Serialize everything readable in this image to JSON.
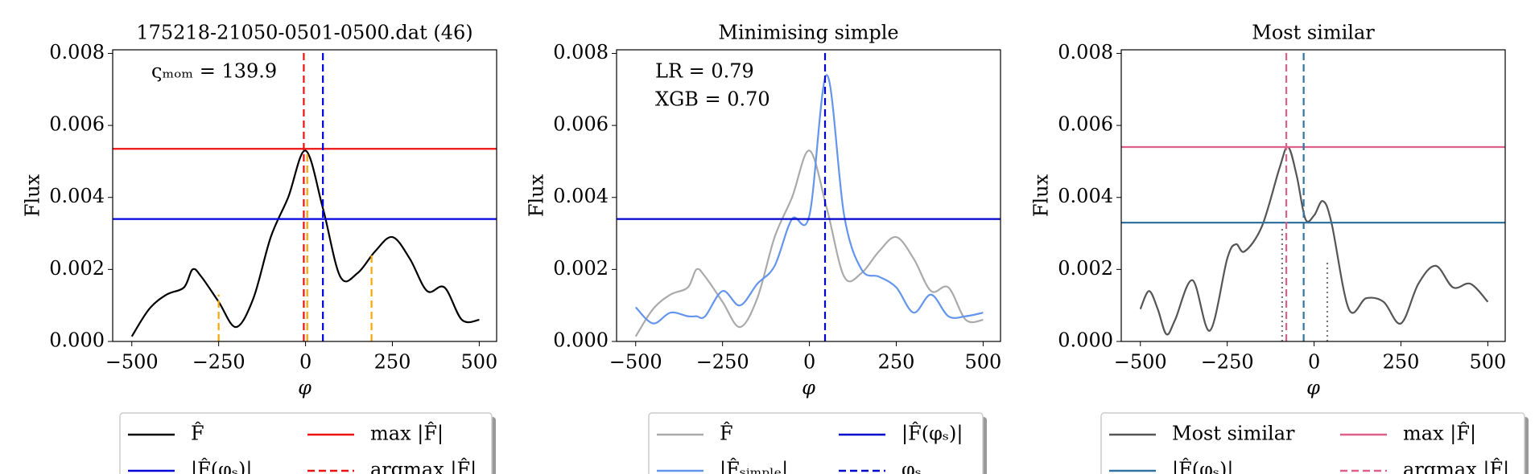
{
  "chart_data": [
    {
      "type": "line",
      "title": "175218-21050-0501-0500.dat (46)",
      "xlabel": "φ",
      "ylabel": "Flux",
      "annotations": [
        "ςₘₒₘ = 139.9"
      ],
      "x": [
        -500,
        -450,
        -400,
        -350,
        -325,
        -300,
        -250,
        -200,
        -150,
        -100,
        -50,
        0,
        50,
        100,
        150,
        200,
        250,
        300,
        350,
        400,
        450,
        500
      ],
      "series": [
        {
          "name": "F̂",
          "color": "#000000",
          "values": [
            0.00014,
            0.0009,
            0.0013,
            0.0015,
            0.002,
            0.0018,
            0.0011,
            0.0004,
            0.0012,
            0.0029,
            0.004,
            0.0053,
            0.0037,
            0.0018,
            0.0019,
            0.0025,
            0.0029,
            0.0023,
            0.0014,
            0.0015,
            0.0006,
            0.0006
          ]
        }
      ],
      "hlines": [
        {
          "name": "|F̂(φₛ)|",
          "value": 0.0034,
          "color": "#0000dd",
          "style": "solid"
        },
        {
          "name": "max |F̂|",
          "value": 0.00535,
          "color": "#ee1111",
          "style": "solid"
        }
      ],
      "vlines": [
        {
          "name": "argmax |F̂|",
          "value": -5,
          "color": "#ee1111",
          "style": "dashed"
        },
        {
          "value": 50,
          "color": "#0000dd",
          "style": "dashed"
        },
        {
          "value": -250,
          "ymax": 0.0013,
          "color": "#ffa500",
          "style": "dashed"
        },
        {
          "value": 5,
          "ymax": 0.0053,
          "color": "#ffa500",
          "style": "dashed"
        },
        {
          "value": 190,
          "ymax": 0.0024,
          "color": "#ffa500",
          "style": "dashed"
        }
      ],
      "xlim": [
        -555,
        550
      ],
      "ylim": [
        0,
        0.0081
      ],
      "xticks": [
        {
          "value": -500,
          "label": "−500"
        },
        {
          "value": -250,
          "label": "−250"
        },
        0,
        250,
        500
      ],
      "yticks": [
        {
          "value": 0,
          "label": "0.000"
        },
        {
          "value": 0.002,
          "label": "0.002"
        },
        {
          "value": 0.004,
          "label": "0.004"
        },
        {
          "value": 0.006,
          "label": "0.006"
        },
        {
          "value": 0.008,
          "label": "0.008"
        }
      ]
    },
    {
      "type": "line",
      "title": "Minimising simple",
      "xlabel": "φ",
      "ylabel": "Flux",
      "annotations": [
        "LR = 0.79",
        "XGB = 0.70"
      ],
      "x": [
        -500,
        -450,
        -400,
        -350,
        -325,
        -300,
        -250,
        -200,
        -150,
        -100,
        -50,
        0,
        50,
        100,
        150,
        200,
        250,
        300,
        350,
        400,
        450,
        500
      ],
      "series": [
        {
          "name": "F̂",
          "color": "#aaaaaa",
          "values": [
            0.00014,
            0.0009,
            0.0013,
            0.0015,
            0.002,
            0.0018,
            0.0011,
            0.0004,
            0.0012,
            0.0029,
            0.004,
            0.0053,
            0.0037,
            0.0018,
            0.0019,
            0.0025,
            0.0029,
            0.0023,
            0.0014,
            0.0015,
            0.0006,
            0.0006
          ]
        },
        {
          "name": "|F̂ₛᵢₘₚₗₑ|",
          "color": "#6495ed",
          "values": [
            0.00095,
            0.0005,
            0.0008,
            0.0007,
            0.0007,
            0.0007,
            0.0014,
            0.001,
            0.0016,
            0.0021,
            0.0034,
            0.0035,
            0.0074,
            0.0035,
            0.002,
            0.0018,
            0.0015,
            0.0008,
            0.0013,
            0.0007,
            0.0007,
            0.0008
          ]
        }
      ],
      "hlines": [
        {
          "name": "|F̂(φₛ)|",
          "value": 0.0034,
          "color": "#0000cc",
          "style": "solid"
        }
      ],
      "vlines": [
        {
          "name": "φₛ",
          "value": 45,
          "color": "#0000cc",
          "style": "dashed"
        }
      ],
      "xlim": [
        -555,
        550
      ],
      "ylim": [
        0,
        0.0081
      ],
      "xticks": [
        {
          "value": -500,
          "label": "−500"
        },
        {
          "value": -250,
          "label": "−250"
        },
        0,
        250,
        500
      ],
      "yticks": [
        {
          "value": 0,
          "label": "0.000"
        },
        {
          "value": 0.002,
          "label": "0.002"
        },
        {
          "value": 0.004,
          "label": "0.004"
        },
        {
          "value": 0.006,
          "label": "0.006"
        },
        {
          "value": 0.008,
          "label": "0.008"
        }
      ]
    },
    {
      "type": "line",
      "title": "Most similar",
      "xlabel": "φ",
      "ylabel": "Flux",
      "annotations": [],
      "x": [
        -500,
        -475,
        -450,
        -425,
        -400,
        -350,
        -300,
        -250,
        -225,
        -200,
        -150,
        -100,
        -75,
        -50,
        -25,
        0,
        25,
        50,
        100,
        150,
        200,
        250,
        300,
        350,
        400,
        450,
        500
      ],
      "series": [
        {
          "name": "Most similar",
          "color": "#555555",
          "values": [
            0.0009,
            0.0014,
            0.0009,
            0.0002,
            0.0006,
            0.0017,
            0.0003,
            0.0023,
            0.0027,
            0.0025,
            0.0032,
            0.0048,
            0.0054,
            0.0046,
            0.0034,
            0.0035,
            0.0039,
            0.0033,
            0.0009,
            0.0012,
            0.0011,
            0.0005,
            0.0016,
            0.0021,
            0.0015,
            0.0016,
            0.0011
          ]
        }
      ],
      "hlines": [
        {
          "name": "|F̂(φₛ)|",
          "value": 0.0033,
          "color": "#3274a1",
          "style": "solid"
        },
        {
          "name": "max |F̂|",
          "value": 0.0054,
          "color": "#dd6088",
          "style": "solid"
        }
      ],
      "vlines": [
        {
          "name": "argmax |F̂|",
          "value": -80,
          "color": "#dd6088",
          "style": "dashed"
        },
        {
          "value": -30,
          "color": "#3274a1",
          "style": "dashed"
        },
        {
          "value": -92,
          "ymax": 0.0032,
          "color": "#777777",
          "style": "dotted"
        },
        {
          "value": 38,
          "ymax": 0.0022,
          "color": "#777777",
          "style": "dotted"
        }
      ],
      "xlim": [
        -555,
        550
      ],
      "ylim": [
        0,
        0.0081
      ],
      "xticks": [
        {
          "value": -500,
          "label": "−500"
        },
        {
          "value": -250,
          "label": "−250"
        },
        0,
        250,
        500
      ],
      "yticks": [
        {
          "value": 0,
          "label": "0.000"
        },
        {
          "value": 0.002,
          "label": "0.002"
        },
        {
          "value": 0.004,
          "label": "0.004"
        },
        {
          "value": 0.006,
          "label": "0.006"
        },
        {
          "value": 0.008,
          "label": "0.008"
        }
      ]
    }
  ]
}
